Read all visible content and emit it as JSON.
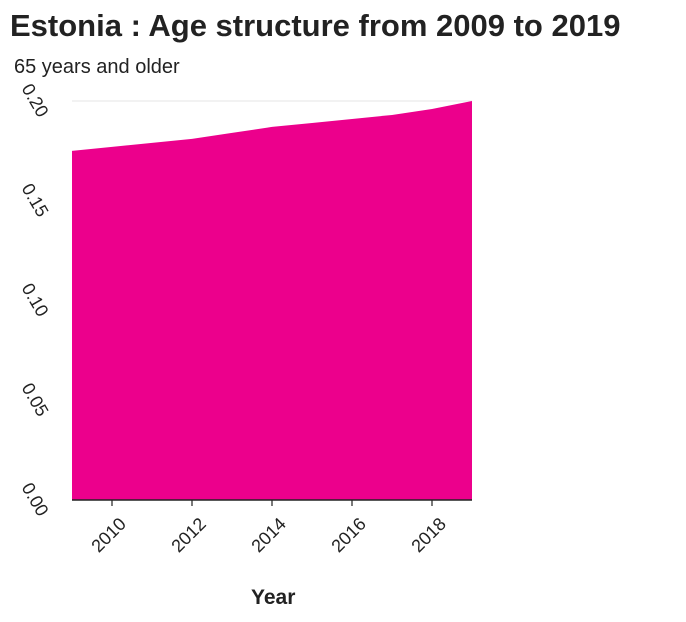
{
  "colors": {
    "area": "#ec008c",
    "axis": "#222222",
    "grid": "#e6e6e6"
  },
  "chart_data": {
    "type": "area",
    "title": "Estonia : Age structure from 2009 to 2019",
    "series_label": "65 years and older",
    "xlabel": "Year",
    "ylabel": "",
    "xlim": [
      2009,
      2019
    ],
    "ylim": [
      0,
      0.2
    ],
    "x_ticks": [
      2010,
      2012,
      2014,
      2016,
      2018
    ],
    "y_ticks": [
      "0.00",
      "0.05",
      "0.10",
      "0.15",
      "0.20"
    ],
    "y_tick_values": [
      0,
      0.05,
      0.1,
      0.15,
      0.2
    ],
    "grid": "horizontal at top",
    "series": [
      {
        "x": [
          2009,
          2010,
          2011,
          2012,
          2013,
          2014,
          2015,
          2016,
          2017,
          2018,
          2019
        ],
        "values": [
          0.175,
          0.177,
          0.179,
          0.181,
          0.184,
          0.187,
          0.189,
          0.191,
          0.193,
          0.196,
          0.2
        ]
      }
    ]
  }
}
